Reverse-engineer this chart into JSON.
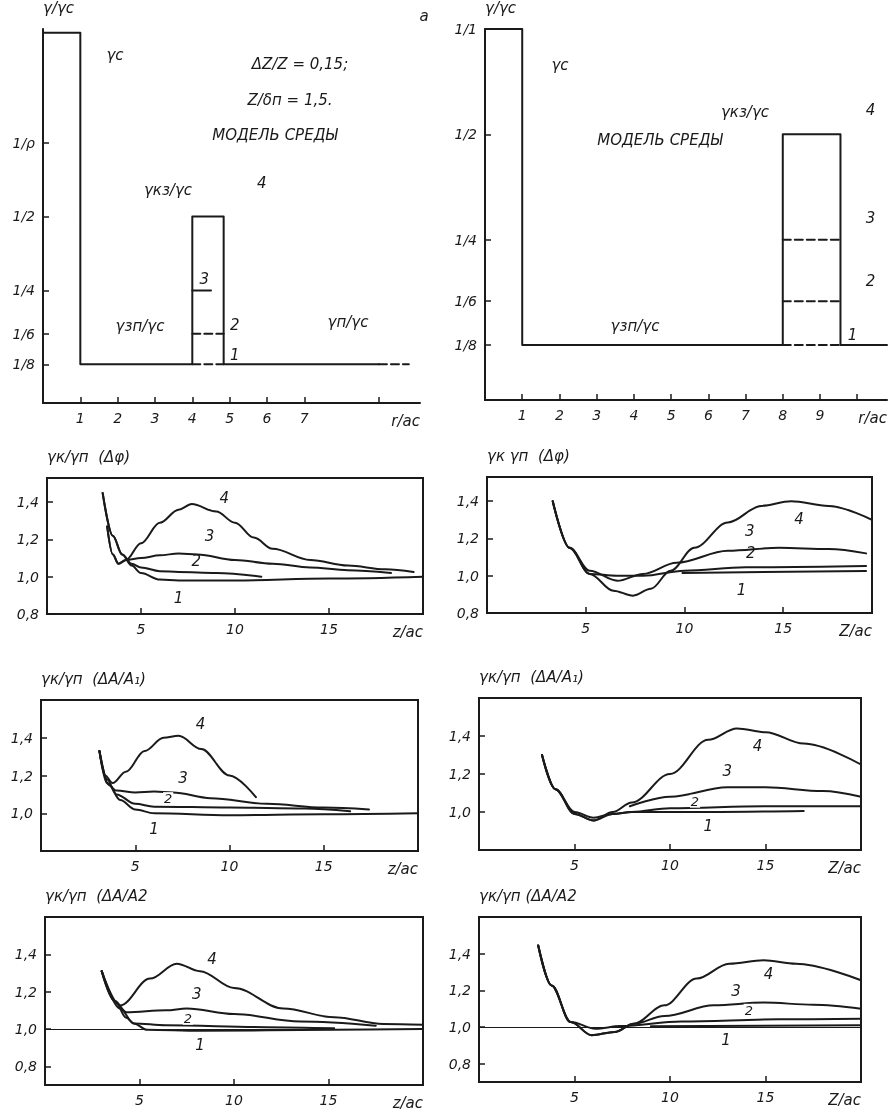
{
  "chart_data": [
    {
      "type": "line",
      "xlabel": "r/ac",
      "ylabel": "γ/γc",
      "log": "y",
      "marker": "none",
      "xlim": [
        0,
        10.1
      ],
      "ylim": [
        0.087,
        2.9
      ],
      "xticks": [
        1,
        2,
        3,
        4,
        5,
        6,
        7,
        {
          "value": 9,
          "label": null
        }
      ],
      "yticks": [
        {
          "value": 0.125,
          "label": "1/8"
        },
        {
          "value": 0.1667,
          "label": "1/6"
        },
        {
          "value": 0.25,
          "label": "1/4"
        },
        {
          "value": 0.5,
          "label": "1/2"
        },
        {
          "value": 1,
          "label": "1/ρ"
        }
      ],
      "series": [
        {
          "name": "4",
          "color": "#1a1a1a",
          "x": [
            0,
            0,
            1,
            1,
            4,
            4,
            4.84,
            4.84,
            9
          ],
          "values": [
            0.087,
            2.8,
            2.8,
            0.125,
            0.125,
            0.5,
            0.5,
            0.125,
            0.125
          ]
        },
        {
          "name": "3",
          "color": "#1a1a1a",
          "x": [
            4,
            4.5
          ],
          "values": [
            0.25,
            0.25
          ]
        },
        {
          "name": "2",
          "color": "#1a1a1a",
          "line_style": "dashed",
          "x": [
            4,
            4.84
          ],
          "values": [
            0.1667,
            0.1667
          ]
        },
        {
          "name": "1",
          "color": "#1a1a1a",
          "line_style": "dashed",
          "x": [
            4,
            4.84
          ],
          "values": [
            0.125,
            0.125
          ]
        },
        {
          "color": "#1a1a1a",
          "line_style": "dashed",
          "x": [
            9,
            9.8
          ],
          "values": [
            0.125,
            0.125
          ]
        }
      ],
      "annotations": [
        "ΔZ/Z = 0,15;",
        "Z/δп = 1,5.",
        "МОДЕЛЬ СРЕДЫ",
        "а",
        "γc",
        "γкз/γc",
        "γзп/γc",
        "γп/γc"
      ]
    },
    {
      "type": "line",
      "xlabel": "r/ac",
      "ylabel": "γ/γc",
      "log": "y",
      "marker": "none",
      "xlim": [
        0,
        10.8
      ],
      "ylim": [
        0.087,
        1
      ],
      "xticks": [
        1,
        2,
        3,
        4,
        5,
        6,
        7,
        8,
        9,
        {
          "value": 10,
          "label": null
        }
      ],
      "yticks": [
        {
          "value": 0.125,
          "label": "1/8"
        },
        {
          "value": 0.1667,
          "label": "1/6"
        },
        {
          "value": 0.25,
          "label": "1/4"
        },
        {
          "value": 0.5,
          "label": "1/2"
        },
        {
          "value": 1,
          "label": "1/1"
        }
      ],
      "series": [
        {
          "name": "4",
          "color": "#1a1a1a",
          "x": [
            0,
            0,
            1,
            1,
            8,
            8,
            9.55,
            9.55,
            10.8
          ],
          "values": [
            0.087,
            1,
            1,
            0.125,
            0.125,
            0.5,
            0.5,
            0.125,
            0.125
          ]
        },
        {
          "name": "3",
          "color": "#1a1a1a",
          "line_style": "dashed",
          "x": [
            8,
            9.55
          ],
          "values": [
            0.25,
            0.25
          ]
        },
        {
          "name": "2",
          "color": "#1a1a1a",
          "line_style": "dashed",
          "x": [
            8,
            9.55
          ],
          "values": [
            0.1667,
            0.1667
          ]
        },
        {
          "name": "1",
          "color": "#1a1a1a",
          "line_style": "dashed",
          "x": [
            8,
            9.55
          ],
          "values": [
            0.125,
            0.125
          ]
        }
      ],
      "annotations": [
        "МОДЕЛЬ СРЕДЫ",
        "γc",
        "γкз/γc",
        "γзп/γc"
      ]
    },
    {
      "type": "line",
      "xlabel": "z/ac",
      "ylabel": "γк/γп  (Δφ)",
      "marker": "none",
      "xlim": [
        0,
        20
      ],
      "ylim": [
        0.8,
        1.53
      ],
      "xticks": [
        5,
        10,
        15
      ],
      "yticks": [
        {
          "value": 0.8,
          "label": "0,8"
        },
        {
          "value": 1.0,
          "label": "1,0"
        },
        {
          "value": 1.2,
          "label": "1,2"
        },
        {
          "value": 1.4,
          "label": "1,4"
        }
      ],
      "series": [
        {
          "name": "1",
          "color": "#1a1a1a",
          "x": [
            2.96,
            3.5,
            4,
            4.5,
            5,
            6,
            7,
            10,
            15,
            20
          ],
          "values": [
            1.45,
            1.22,
            1.12,
            1.06,
            1.02,
            0.985,
            0.98,
            0.98,
            0.99,
            1.0
          ]
        },
        {
          "name": "2",
          "color": "#1a1a1a",
          "x": [
            2.96,
            3.5,
            4,
            4.5,
            5,
            6,
            7,
            9,
            11.4
          ],
          "values": [
            1.45,
            1.22,
            1.12,
            1.07,
            1.05,
            1.03,
            1.025,
            1.02,
            1.0
          ]
        },
        {
          "name": "3",
          "color": "#1a1a1a",
          "x": [
            3.2,
            3.5,
            3.8,
            4.2,
            5,
            6,
            7,
            8,
            10,
            12,
            14,
            16,
            18.3
          ],
          "values": [
            1.27,
            1.12,
            1.07,
            1.09,
            1.1,
            1.115,
            1.125,
            1.12,
            1.09,
            1.07,
            1.05,
            1.035,
            1.02
          ]
        },
        {
          "name": "4",
          "color": "#1a1a1a",
          "x": [
            3.2,
            3.5,
            3.8,
            4.2,
            5,
            6,
            7,
            7.7,
            9,
            10,
            11,
            12,
            14,
            16,
            18,
            19.5
          ],
          "values": [
            1.27,
            1.12,
            1.07,
            1.09,
            1.18,
            1.29,
            1.36,
            1.39,
            1.35,
            1.29,
            1.21,
            1.15,
            1.09,
            1.06,
            1.04,
            1.025
          ]
        }
      ]
    },
    {
      "type": "line",
      "xlabel": "Z/ac",
      "ylabel": "γк γп  (Δφ)",
      "marker": "none",
      "xlim": [
        0,
        19.5
      ],
      "ylim": [
        0.8,
        1.53
      ],
      "xticks": [
        5,
        10,
        15
      ],
      "yticks": [
        {
          "value": 0.8,
          "label": "0,8"
        },
        {
          "value": 1.0,
          "label": "1,0"
        },
        {
          "value": 1.2,
          "label": "1,2"
        },
        {
          "value": 1.4,
          "label": "1,4"
        }
      ],
      "series": [
        {
          "name": "1",
          "color": "#1a1a1a",
          "x": [
            9.9,
            14,
            19.2
          ],
          "values": [
            1.015,
            1.02,
            1.025
          ]
        },
        {
          "name": "2",
          "color": "#1a1a1a",
          "x": [
            3.33,
            4.18,
            5.2,
            6.6,
            7.9,
            10,
            13.1,
            19.2
          ],
          "values": [
            1.4,
            1.15,
            1.01,
            1.0,
            1.0,
            1.027,
            1.045,
            1.052
          ]
        },
        {
          "name": "3",
          "color": "#1a1a1a",
          "x": [
            3.33,
            4.18,
            5.2,
            6.6,
            7.9,
            9.6,
            12.2,
            14.8,
            17.3,
            19.2
          ],
          "values": [
            1.4,
            1.15,
            1.027,
            0.973,
            1.01,
            1.07,
            1.134,
            1.15,
            1.143,
            1.12
          ]
        },
        {
          "name": "4",
          "color": "#1a1a1a",
          "x": [
            3.33,
            4.18,
            5.2,
            6.4,
            7.4,
            8.3,
            9.3,
            10.5,
            12.2,
            13.9,
            15.4,
            17.3,
            19.5
          ],
          "values": [
            1.4,
            1.15,
            1.01,
            0.92,
            0.893,
            0.93,
            1.027,
            1.15,
            1.286,
            1.375,
            1.4,
            1.375,
            1.3
          ]
        }
      ]
    },
    {
      "type": "line",
      "xlabel": "z/ac",
      "ylabel": "γк/γп  (ΔA/A₁)",
      "marker": "none",
      "xlim": [
        0,
        20
      ],
      "ylim": [
        0.8,
        1.6
      ],
      "xticks": [
        5,
        10,
        15
      ],
      "yticks": [
        {
          "value": 1.0,
          "label": "1,0"
        },
        {
          "value": 1.2,
          "label": "1,2"
        },
        {
          "value": 1.4,
          "label": "1,4"
        }
      ],
      "series": [
        {
          "name": "1",
          "color": "#1a1a1a",
          "x": [
            3.1,
            3.6,
            4.2,
            5,
            6,
            10,
            15,
            20
          ],
          "values": [
            1.33,
            1.15,
            1.07,
            1.02,
            1.0,
            0.99,
            0.995,
            1.0
          ]
        },
        {
          "name": "2",
          "color": "#1a1a1a",
          "x": [
            3.1,
            3.5,
            4,
            5,
            6,
            10,
            14,
            16.4
          ],
          "values": [
            1.33,
            1.18,
            1.1,
            1.05,
            1.035,
            1.03,
            1.025,
            1.01
          ]
        },
        {
          "name": "3",
          "color": "#1a1a1a",
          "x": [
            3.1,
            3.5,
            4,
            5,
            6,
            7,
            9,
            12,
            15,
            17.4
          ],
          "values": [
            1.33,
            1.16,
            1.12,
            1.11,
            1.115,
            1.11,
            1.08,
            1.05,
            1.03,
            1.02
          ]
        },
        {
          "name": "4",
          "color": "#1a1a1a",
          "x": [
            3.1,
            3.4,
            3.8,
            4.5,
            5.5,
            6.5,
            7.3,
            8.5,
            10,
            11.4
          ],
          "values": [
            1.33,
            1.2,
            1.16,
            1.22,
            1.33,
            1.4,
            1.41,
            1.34,
            1.2,
            1.085
          ]
        }
      ]
    },
    {
      "type": "line",
      "xlabel": "Z/ac",
      "ylabel": "γк/γп  (ΔA/A₁)",
      "marker": "none",
      "xlim": [
        0,
        20
      ],
      "ylim": [
        0.8,
        1.6
      ],
      "xticks": [
        5,
        10,
        15
      ],
      "yticks": [
        {
          "value": 1.0,
          "label": "1,0"
        },
        {
          "value": 1.2,
          "label": "1,2"
        },
        {
          "value": 1.4,
          "label": "1,4"
        }
      ],
      "series": [
        {
          "name": "1",
          "color": "#1a1a1a",
          "x": [
            3.3,
            4,
            5,
            6,
            7,
            8,
            12,
            17
          ],
          "values": [
            1.3,
            1.12,
            0.99,
            0.955,
            0.99,
            1.0,
            1.0,
            1.005
          ]
        },
        {
          "name": "2",
          "color": "#1a1a1a",
          "x": [
            3.3,
            4,
            5,
            6,
            7,
            8,
            10,
            15,
            20
          ],
          "values": [
            1.3,
            1.12,
            1.0,
            0.97,
            0.99,
            1.0,
            1.02,
            1.03,
            1.03
          ]
        },
        {
          "name": "3",
          "color": "#1a1a1a",
          "x": [
            7.9,
            10,
            13,
            15,
            18,
            20
          ],
          "values": [
            1.03,
            1.08,
            1.13,
            1.13,
            1.11,
            1.08
          ]
        },
        {
          "name": "4",
          "color": "#1a1a1a",
          "x": [
            3.3,
            4,
            5,
            6,
            7,
            8,
            10,
            12,
            13.5,
            15,
            17,
            20
          ],
          "values": [
            1.3,
            1.12,
            0.99,
            0.955,
            1.0,
            1.05,
            1.2,
            1.38,
            1.44,
            1.42,
            1.36,
            1.25
          ]
        }
      ]
    },
    {
      "type": "line",
      "xlabel": "z/ac",
      "ylabel": "γк/γп  (ΔA/A2",
      "marker": "none",
      "xlim": [
        0,
        20
      ],
      "ylim": [
        0.7,
        1.6
      ],
      "xticks": [
        5,
        10,
        15
      ],
      "yticks": [
        {
          "value": 0.8,
          "label": "0,8"
        },
        {
          "value": 1.0,
          "label": "1,0"
        },
        {
          "value": 1.2,
          "label": "1,2"
        },
        {
          "value": 1.4,
          "label": "1,4"
        }
      ],
      "ref_lines": [
        {
          "axis": "y",
          "value": 1.0
        }
      ],
      "series": [
        {
          "name": "1",
          "color": "#1a1a1a",
          "x": [
            3.0,
            3.97,
            4.7,
            5.4,
            8.2,
            15.3,
            20
          ],
          "values": [
            1.31,
            1.11,
            1.03,
            0.996,
            0.99,
            0.996,
            1.0
          ]
        },
        {
          "name": "2",
          "color": "#1a1a1a",
          "x": [
            3.0,
            3.7,
            4.3,
            4.7,
            6.4,
            11.7,
            15.3
          ],
          "values": [
            1.31,
            1.15,
            1.06,
            1.03,
            1.02,
            1.01,
            1.004
          ]
        },
        {
          "name": "3",
          "color": "#1a1a1a",
          "x": [
            3.0,
            3.7,
            4.3,
            6.4,
            7.5,
            10,
            13.5,
            17.5
          ],
          "values": [
            1.31,
            1.15,
            1.09,
            1.1,
            1.11,
            1.08,
            1.04,
            1.018
          ]
        },
        {
          "name": "4",
          "color": "#1a1a1a",
          "x": [
            3.0,
            3.97,
            5.56,
            6.97,
            8.2,
            10,
            12.6,
            15.3,
            17.9,
            20
          ],
          "values": [
            1.31,
            1.126,
            1.27,
            1.35,
            1.31,
            1.22,
            1.11,
            1.063,
            1.027,
            1.023
          ]
        }
      ]
    },
    {
      "type": "line",
      "xlabel": "Z/ac",
      "ylabel": "γк/γп (ΔA/A2",
      "marker": "none",
      "xlim": [
        0,
        20
      ],
      "ylim": [
        0.7,
        1.6
      ],
      "xticks": [
        5,
        10,
        15
      ],
      "yticks": [
        {
          "value": 0.8,
          "label": "0,8"
        },
        {
          "value": 1.0,
          "label": "1,0"
        },
        {
          "value": 1.2,
          "label": "1,2"
        },
        {
          "value": 1.4,
          "label": "1,4"
        }
      ],
      "ref_lines": [
        {
          "axis": "y",
          "value": 1.0
        }
      ],
      "series": [
        {
          "name": "1",
          "color": "#1a1a1a",
          "x": [
            9.0,
            20
          ],
          "values": [
            1.004,
            1.009
          ]
        },
        {
          "name": "2",
          "color": "#1a1a1a",
          "x": [
            3.1,
            3.8,
            4.8,
            6.1,
            7.4,
            10.6,
            15.7,
            20
          ],
          "values": [
            1.445,
            1.227,
            1.027,
            0.99,
            1.005,
            1.03,
            1.042,
            1.045
          ]
        },
        {
          "name": "3",
          "color": "#1a1a1a",
          "x": [
            3.1,
            3.8,
            4.8,
            5.9,
            7.1,
            8.1,
            9.7,
            12.3,
            14.9,
            17.5,
            20
          ],
          "values": [
            1.445,
            1.227,
            1.027,
            0.955,
            0.973,
            1.018,
            1.06,
            1.118,
            1.133,
            1.122,
            1.1
          ]
        },
        {
          "name": "4",
          "color": "#1a1a1a",
          "x": [
            3.1,
            3.8,
            4.8,
            5.9,
            7.1,
            8.1,
            9.7,
            11.4,
            13.1,
            14.9,
            16.6,
            20
          ],
          "values": [
            1.445,
            1.227,
            1.027,
            0.955,
            0.973,
            1.018,
            1.118,
            1.264,
            1.345,
            1.364,
            1.345,
            1.255
          ]
        }
      ]
    }
  ]
}
